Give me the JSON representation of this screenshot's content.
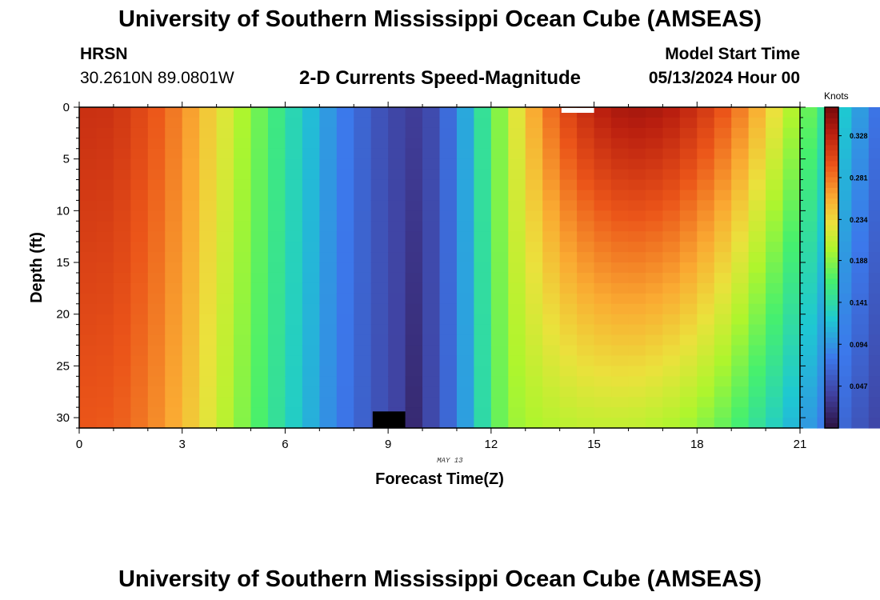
{
  "header": {
    "title": "University of Southern Mississippi Ocean Cube (AMSEAS)",
    "station": "HRSN",
    "coordinates": "30.2610N  89.0801W",
    "variable": "2-D Currents Speed-Magnitude",
    "model_start_label": "Model Start Time",
    "model_start_value": "05/13/2024 Hour 00"
  },
  "footer": {
    "title": "University of Southern Mississippi Ocean Cube (AMSEAS)"
  },
  "chart_data": {
    "type": "heatmap",
    "title": "2-D Currents Speed-Magnitude",
    "xlabel": "Forecast Time(Z)",
    "ylabel": "Depth (ft)",
    "date_label": "MAY 13",
    "xlim": [
      0,
      21
    ],
    "ylim": [
      31,
      0
    ],
    "x_ticks": [
      0,
      3,
      6,
      9,
      12,
      15,
      18,
      21
    ],
    "y_ticks": [
      0,
      5,
      10,
      15,
      20,
      25,
      30
    ],
    "x_minor_step": 1,
    "y_minor_step": 1,
    "colorbar": {
      "units": "Knots",
      "min": 0.0,
      "max": 0.36,
      "ticks": [
        0.047,
        0.094,
        0.141,
        0.188,
        0.234,
        0.281,
        0.328
      ]
    },
    "time_step_hours": 0.5,
    "depth_step_ft": 1.0,
    "surface_speed_knots": [
      0.319,
      0.318,
      0.313,
      0.304,
      0.294,
      0.28,
      0.263,
      0.243,
      0.223,
      0.201,
      0.179,
      0.157,
      0.136,
      0.116,
      0.097,
      0.08,
      0.065,
      0.052,
      0.042,
      0.035,
      0.046,
      0.07,
      0.105,
      0.148,
      0.188,
      0.226,
      0.258,
      0.284,
      0.305,
      0.32,
      0.33,
      0.336,
      0.338,
      0.336,
      0.331,
      0.322,
      0.31,
      0.295,
      0.277,
      0.255,
      0.23,
      0.203,
      0.176,
      0.148,
      0.122,
      0.098,
      0.076,
      0.058
    ],
    "bottom_speed_knots": [
      0.295,
      0.294,
      0.29,
      0.282,
      0.272,
      0.259,
      0.244,
      0.226,
      0.207,
      0.187,
      0.167,
      0.147,
      0.128,
      0.109,
      0.092,
      0.077,
      0.063,
      0.051,
      0.04,
      0.02,
      0.044,
      0.067,
      0.1,
      0.141,
      0.178,
      0.196,
      0.202,
      0.206,
      0.209,
      0.211,
      0.212,
      0.212,
      0.211,
      0.208,
      0.204,
      0.198,
      0.189,
      0.178,
      0.164,
      0.148,
      0.132,
      0.115,
      0.098,
      0.082,
      0.067,
      0.054,
      0.043,
      0.035
    ],
    "masked_cells": [
      {
        "time_hour": 14.5,
        "depth_ft": 0,
        "color": "#ffffff"
      },
      {
        "time_hour": 9.0,
        "depth_ft": 30,
        "color": "#000000"
      }
    ]
  }
}
